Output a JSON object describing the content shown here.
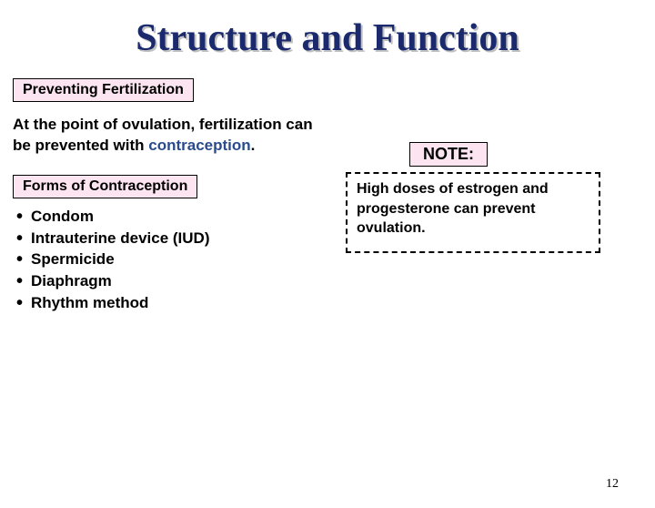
{
  "title": {
    "text": "Structure and Function",
    "color": "#1a2a6c"
  },
  "section_heading": "Preventing Fertilization",
  "intro": {
    "plain": "At the point of ovulation, fertilization can be prevented with ",
    "highlight": "contraception",
    "suffix": "."
  },
  "sub_heading": "Forms of Contraception",
  "bullets": [
    "Condom",
    "Intrauterine device (IUD)",
    "Spermicide",
    "Diaphragm",
    "Rhythm method"
  ],
  "note": {
    "label": "NOTE:",
    "text": "High doses of estrogen and progesterone can prevent ovulation."
  },
  "page_number": "12",
  "colors": {
    "heading_bg": "#fce4f0",
    "highlight": "#2a4b8d",
    "dash_border": "#000000"
  }
}
